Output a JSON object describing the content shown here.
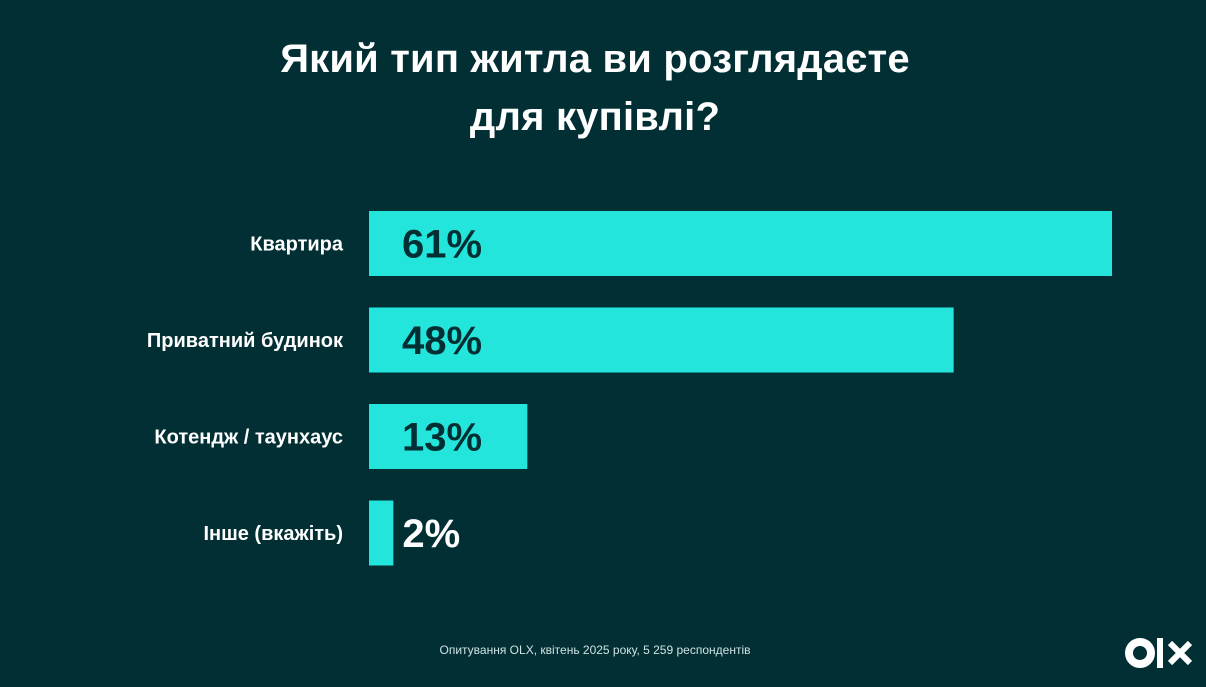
{
  "title_lines": [
    "Який тип житла ви розглядаєте",
    "для купівлі?"
  ],
  "footer": "Опитування OLX, квітень 2025 року, 5 259 респондентів",
  "logo": {
    "name": "olx-logo",
    "text": "OLX"
  },
  "colors": {
    "background": "#022f33",
    "bar": "#23e5db",
    "label": "#ffffff",
    "value_inside": "#022f33",
    "value_outside": "#ffffff"
  },
  "chart_data": {
    "type": "bar",
    "orientation": "horizontal",
    "categories": [
      "Квартира",
      "Приватний будинок",
      "Котендж / таунхаус",
      "Інше (вкажіть)"
    ],
    "values": [
      61,
      48,
      13,
      2
    ],
    "value_labels": [
      "61%",
      "48%",
      "13%",
      "2%"
    ],
    "unit": "%",
    "xlim": [
      0,
      61
    ],
    "grid": false,
    "legend": "none"
  }
}
